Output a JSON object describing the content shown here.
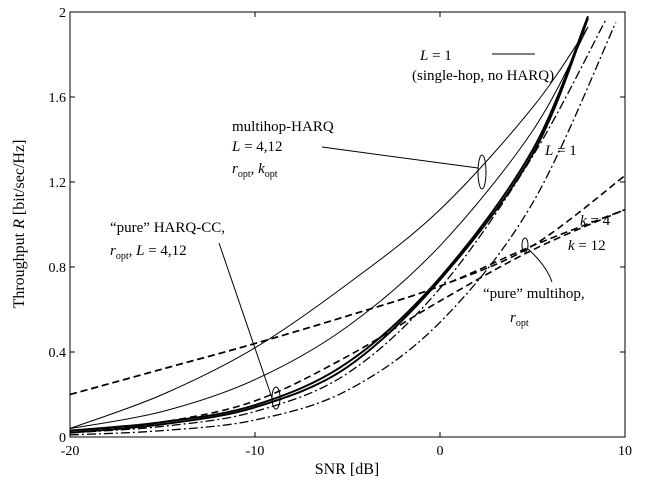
{
  "chart_data": {
    "type": "line",
    "title": "",
    "xlabel": "SNR [dB]",
    "ylabel_parts": [
      "Throughput ",
      "R",
      " [bit/sec/Hz]"
    ],
    "xlim": [
      -20,
      10
    ],
    "ylim": [
      0,
      2
    ],
    "grid": false,
    "x_ticks": [
      "-20",
      "-10",
      "0",
      "10"
    ],
    "y_ticks": [
      "0",
      "0.4",
      "0.8",
      "1.2",
      "1.6",
      "2"
    ],
    "series": [
      {
        "style": "thin",
        "x": [
          -20,
          -15,
          -10,
          -5,
          0,
          5,
          8
        ],
        "y": [
          0.04,
          0.2,
          0.42,
          0.72,
          1.07,
          1.55,
          1.93
        ]
      },
      {
        "style": "thin",
        "x": [
          -20,
          -15,
          -10,
          -5,
          0,
          5,
          8
        ],
        "y": [
          0.04,
          0.12,
          0.27,
          0.52,
          0.9,
          1.44,
          1.93
        ]
      },
      {
        "style": "thick",
        "x": [
          -20,
          -15,
          -10,
          -5,
          0,
          5,
          8
        ],
        "y": [
          0.03,
          0.07,
          0.15,
          0.35,
          0.75,
          1.35,
          1.98
        ]
      },
      {
        "style": "thick",
        "x": [
          -20,
          -15,
          -10,
          -5,
          0,
          5,
          8
        ],
        "y": [
          0.02,
          0.06,
          0.14,
          0.33,
          0.74,
          1.33,
          1.97
        ]
      },
      {
        "style": "dashdot",
        "x": [
          -20,
          -15,
          -10,
          -5,
          0,
          5,
          9.5
        ],
        "y": [
          0.01,
          0.03,
          0.08,
          0.22,
          0.54,
          1.1,
          1.95
        ]
      },
      {
        "style": "dashdot",
        "x": [
          -20,
          -15,
          -10,
          -5,
          0,
          5,
          9
        ],
        "y": [
          0.02,
          0.05,
          0.12,
          0.3,
          0.7,
          1.32,
          1.97
        ]
      },
      {
        "style": "dashed",
        "x": [
          -20,
          -15,
          -10,
          -5,
          0,
          5,
          10
        ],
        "y": [
          0.2,
          0.32,
          0.44,
          0.57,
          0.71,
          0.9,
          1.23
        ]
      },
      {
        "style": "dashed",
        "x": [
          -20,
          -15,
          -10,
          -5,
          0,
          5,
          10
        ],
        "y": [
          0.2,
          0.32,
          0.44,
          0.57,
          0.71,
          0.9,
          1.07
        ]
      },
      {
        "style": "dashed",
        "x": [
          -20,
          -15,
          -10,
          -5,
          0,
          5,
          10
        ],
        "y": [
          0.02,
          0.07,
          0.17,
          0.38,
          0.64,
          0.88,
          1.07
        ]
      }
    ],
    "annotations": {
      "single_hop_line1": [
        "L",
        " = 1"
      ],
      "single_hop_line2": "(single-hop, no HARQ)",
      "l1_right": [
        "L",
        " = 1"
      ],
      "mh_title": "multihop-HARQ",
      "mh_line2": [
        "L",
        " = 4,12"
      ],
      "mh_line3": [
        "r",
        "opt",
        ", ",
        "k",
        "opt"
      ],
      "k4": [
        "k",
        " = 4"
      ],
      "k12": [
        "k",
        " = 12"
      ],
      "pure_harq_line1": "“pure” HARQ-CC,",
      "pure_harq_line2": [
        "r",
        "opt",
        ", ",
        "L",
        " = 4,12"
      ],
      "pure_mh_line1": "“pure” multihop,",
      "pure_mh_line2": [
        "r",
        "opt"
      ]
    }
  }
}
